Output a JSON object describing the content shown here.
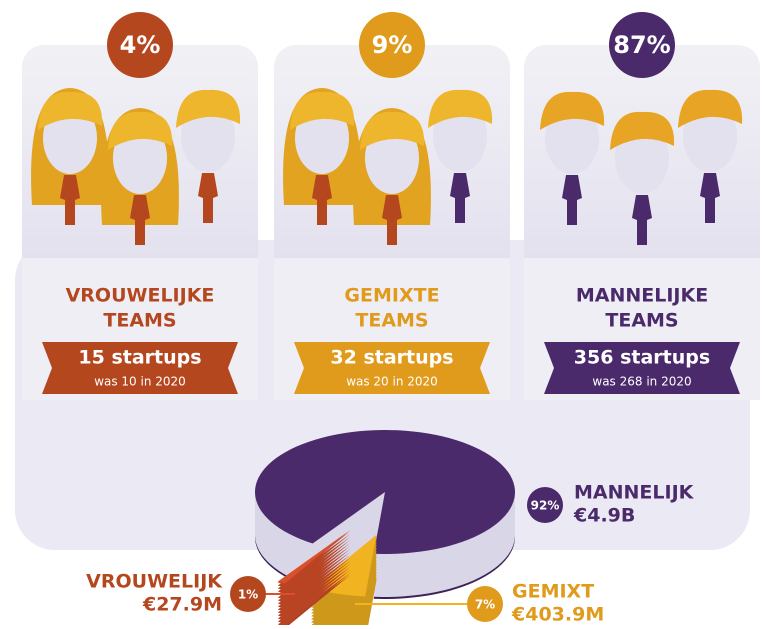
{
  "teams": [
    {
      "percent": "4%",
      "title": [
        "VROUWELIJKE",
        "TEAMS"
      ],
      "startups": "15 startups",
      "previous": "was 10 in 2020",
      "color": "#b5471f"
    },
    {
      "percent": "9%",
      "title": [
        "GEMIXTE",
        "TEAMS"
      ],
      "startups": "32 startups",
      "previous": "was 20 in 2020",
      "color": "#e09a1c"
    },
    {
      "percent": "87%",
      "title": [
        "MANNELIJKE",
        "TEAMS"
      ],
      "startups": "356 startups",
      "previous": "was 268 in 2020",
      "color": "#4b2a6b"
    }
  ],
  "chart_data": {
    "type": "pie",
    "categories": [
      "MANNELIJK",
      "GEMIXT",
      "VROUWELIJK"
    ],
    "values": [
      92,
      7,
      1
    ],
    "value_labels": [
      "92%",
      "7%",
      "1%"
    ],
    "amounts": [
      "€4.9B",
      "€403.9M",
      "€27.9M"
    ],
    "colors": [
      "#4b2a6b",
      "#f2b320",
      "#d9502a"
    ]
  }
}
